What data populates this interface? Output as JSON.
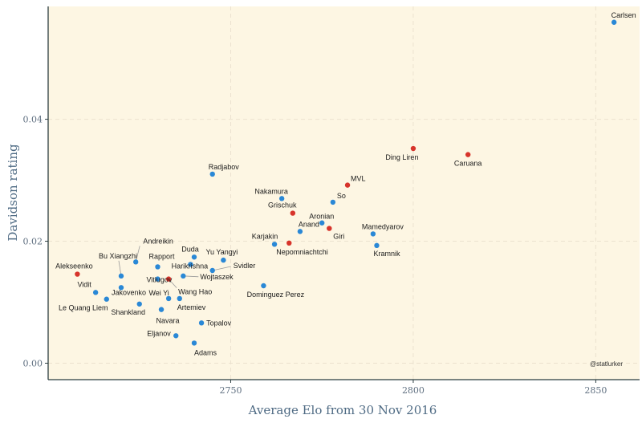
{
  "chart_data": {
    "type": "scatter",
    "xlabel": "Average Elo from 30 Nov 2016",
    "ylabel": "Davidson rating",
    "xlim": [
      2700,
      2862
    ],
    "ylim": [
      -0.0027,
      0.0585
    ],
    "x_ticks": [
      2750,
      2800,
      2850
    ],
    "x_tick_labels": [
      "2750",
      "2800",
      "2850"
    ],
    "y_ticks": [
      0.0,
      0.02,
      0.04
    ],
    "y_tick_labels": [
      "0.00",
      "0.02",
      "0.04"
    ],
    "grid": true,
    "credit": "@statlurker",
    "colors": {
      "background": "#fdf6e3",
      "blue": "#2a88d6",
      "red": "#d7342b",
      "axis": "#2b3d40",
      "grid": "#ebe2cf"
    },
    "points": [
      {
        "name": "Carlsen",
        "x": 2855,
        "y": 0.0559,
        "color": "blue"
      },
      {
        "name": "Caruana",
        "x": 2815,
        "y": 0.0342,
        "color": "red"
      },
      {
        "name": "Ding Liren",
        "x": 2800,
        "y": 0.0352,
        "color": "red"
      },
      {
        "name": "MVL",
        "x": 2782,
        "y": 0.0292,
        "color": "red"
      },
      {
        "name": "So",
        "x": 2778,
        "y": 0.0264,
        "color": "blue"
      },
      {
        "name": "Aronian",
        "x": 2775,
        "y": 0.023,
        "color": "blue"
      },
      {
        "name": "Giri",
        "x": 2777,
        "y": 0.0221,
        "color": "red"
      },
      {
        "name": "Mamedyarov",
        "x": 2789,
        "y": 0.0212,
        "color": "blue"
      },
      {
        "name": "Kramnik",
        "x": 2790,
        "y": 0.0193,
        "color": "blue"
      },
      {
        "name": "Nakamura",
        "x": 2764,
        "y": 0.027,
        "color": "blue"
      },
      {
        "name": "Grischuk",
        "x": 2767,
        "y": 0.0246,
        "color": "red"
      },
      {
        "name": "Anand",
        "x": 2769,
        "y": 0.0216,
        "color": "blue"
      },
      {
        "name": "Karjakin",
        "x": 2762,
        "y": 0.0195,
        "color": "blue"
      },
      {
        "name": "Nepomniachtchi",
        "x": 2766,
        "y": 0.0197,
        "color": "red"
      },
      {
        "name": "Radjabov",
        "x": 2745,
        "y": 0.031,
        "color": "blue"
      },
      {
        "name": "Duda",
        "x": 2740,
        "y": 0.0174,
        "color": "blue"
      },
      {
        "name": "Yu Yangyi",
        "x": 2748,
        "y": 0.0169,
        "color": "blue"
      },
      {
        "name": "Svidler",
        "x": 2745,
        "y": 0.0152,
        "color": "blue"
      },
      {
        "name": "Wojtaszek",
        "x": 2737,
        "y": 0.0143,
        "color": "blue"
      },
      {
        "name": "Dominguez Perez",
        "x": 2759,
        "y": 0.0127,
        "color": "blue"
      },
      {
        "name": "Harikrishna",
        "x": 2739,
        "y": 0.0162,
        "color": "blue"
      },
      {
        "name": "Andreikin",
        "x": 2724,
        "y": 0.0166,
        "color": "blue"
      },
      {
        "name": "Rapport",
        "x": 2730,
        "y": 0.0158,
        "color": "blue"
      },
      {
        "name": "Bu Xiangzhi",
        "x": 2720,
        "y": 0.0143,
        "color": "blue"
      },
      {
        "name": "Vitiugov",
        "x": 2730,
        "y": 0.0138,
        "color": "blue"
      },
      {
        "name": "Wang Hao",
        "x": 2733,
        "y": 0.0138,
        "color": "red"
      },
      {
        "name": "Wei Yi",
        "x": 2733,
        "y": 0.0106,
        "color": "blue"
      },
      {
        "name": "Artemiev",
        "x": 2736,
        "y": 0.0106,
        "color": "blue"
      },
      {
        "name": "Jakovenko",
        "x": 2720,
        "y": 0.0124,
        "color": "blue"
      },
      {
        "name": "Vidit",
        "x": 2713,
        "y": 0.0116,
        "color": "blue"
      },
      {
        "name": "Le Quang Liem",
        "x": 2716,
        "y": 0.0105,
        "color": "blue"
      },
      {
        "name": "Shankland",
        "x": 2725,
        "y": 0.0097,
        "color": "blue"
      },
      {
        "name": "Navara",
        "x": 2731,
        "y": 0.0088,
        "color": "blue"
      },
      {
        "name": "Alekseenko",
        "x": 2708,
        "y": 0.0146,
        "color": "red"
      },
      {
        "name": "Topalov",
        "x": 2742,
        "y": 0.0066,
        "color": "blue"
      },
      {
        "name": "Eljanov",
        "x": 2735,
        "y": 0.0045,
        "color": "blue"
      },
      {
        "name": "Adams",
        "x": 2740,
        "y": 0.0033,
        "color": "blue"
      }
    ]
  }
}
